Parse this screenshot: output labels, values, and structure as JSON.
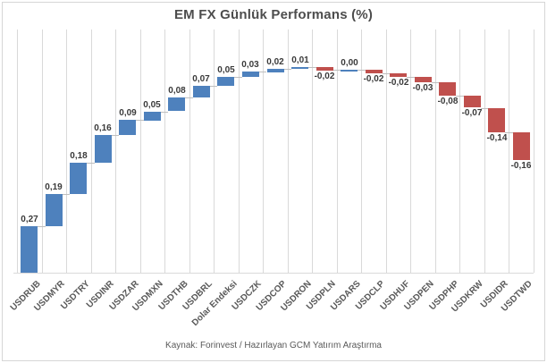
{
  "source_caption": "Kaynak: Forinvest / Hazırlayan GCM Yatırım Araştırma",
  "chart_data": {
    "type": "bar",
    "subtype": "waterfall",
    "title": "EM FX Günlük Performans (%)",
    "xlabel": "",
    "ylabel": "",
    "ylim": [
      0,
      1.42
    ],
    "grid": "vertical-category-separators",
    "legend": false,
    "decimal_separator": ",",
    "categories": [
      "USDRUB",
      "USDMYR",
      "USDTRY",
      "USDINR",
      "USDZAR",
      "USDMXN",
      "USDTHB",
      "USDBRL",
      "Dolar Endeksi",
      "USDCZK",
      "USDCOP",
      "USDRON",
      "USDPLN",
      "USDARS",
      "USDCLP",
      "USDHUF",
      "USDPEN",
      "USDPHP",
      "USDKRW",
      "USDIDR",
      "USDTWD"
    ],
    "values": [
      0.27,
      0.19,
      0.18,
      0.16,
      0.09,
      0.05,
      0.08,
      0.07,
      0.05,
      0.03,
      0.02,
      0.01,
      -0.02,
      0.0,
      -0.02,
      -0.02,
      -0.03,
      -0.08,
      -0.07,
      -0.14,
      -0.16
    ],
    "value_labels": [
      "0,27",
      "0,19",
      "0,18",
      "0,16",
      "0,09",
      "0,05",
      "0,08",
      "0,07",
      "0,05",
      "0,03",
      "0,02",
      "0,01",
      "-0,02",
      "0,00",
      "-0,02",
      "-0,02",
      "-0,03",
      "-0,08",
      "-0,07",
      "-0,14",
      "-0,16"
    ],
    "colors": {
      "positive_bar": "#4E81BD",
      "negative_bar": "#C0504D",
      "gridline": "#D9D9D9",
      "connector": "#BFBFBF",
      "data_label": "#3A3A3A",
      "category_label": "#595959",
      "title": "#4D4D4D"
    }
  }
}
